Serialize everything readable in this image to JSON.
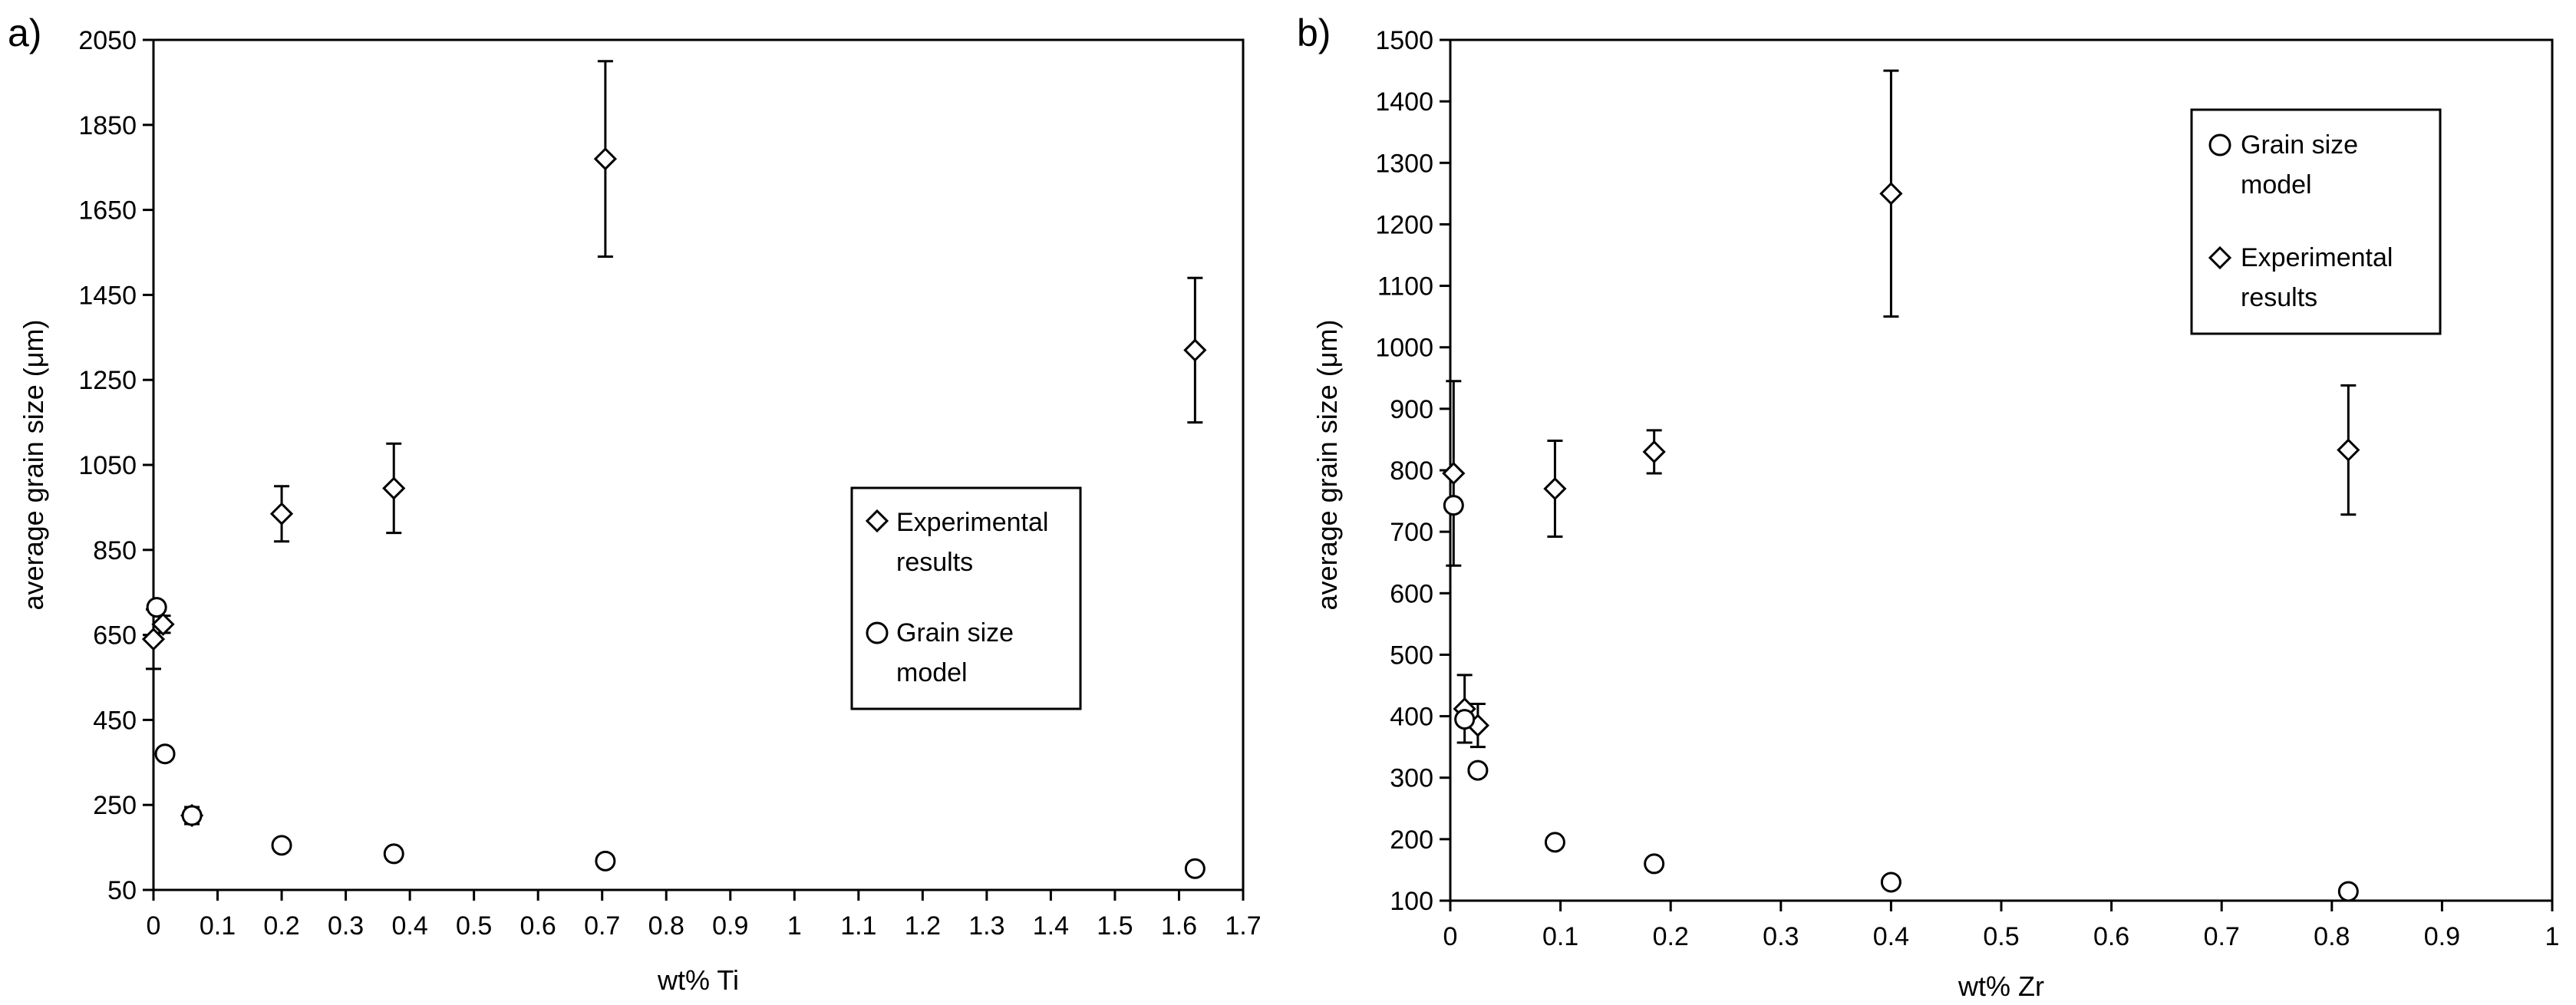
{
  "chart_data": [
    {
      "panel_label": "a)",
      "type": "scatter",
      "xlabel": "wt% Ti",
      "ylabel": "average grain size (μm)",
      "xlim": [
        0,
        1.7
      ],
      "ylim": [
        50,
        2050
      ],
      "x_ticks": [
        "0",
        "0.1",
        "0.2",
        "0.3",
        "0.4",
        "0.5",
        "0.6",
        "0.7",
        "0.8",
        "0.9",
        "1",
        "1.1",
        "1.2",
        "1.3",
        "1.4",
        "1.5",
        "1.6",
        "1.7"
      ],
      "y_ticks": [
        "50",
        "250",
        "450",
        "650",
        "850",
        "1050",
        "1250",
        "1450",
        "1650",
        "1850",
        "2050"
      ],
      "legend_position": "right",
      "series": [
        {
          "name": "Experimental results",
          "marker": "diamond",
          "points": [
            {
              "x": 0.0,
              "y": 640,
              "err": 70
            },
            {
              "x": 0.015,
              "y": 675,
              "err": 20
            },
            {
              "x": 0.06,
              "y": 225,
              "err": 20
            },
            {
              "x": 0.2,
              "y": 935,
              "err": 65
            },
            {
              "x": 0.375,
              "y": 995,
              "err": 105
            },
            {
              "x": 0.705,
              "y": 1770,
              "err": 230
            },
            {
              "x": 1.625,
              "y": 1320,
              "err": 170
            }
          ]
        },
        {
          "name": "Grain size model",
          "marker": "circle",
          "points": [
            {
              "x": 0.005,
              "y": 715
            },
            {
              "x": 0.018,
              "y": 370
            },
            {
              "x": 0.06,
              "y": 225
            },
            {
              "x": 0.2,
              "y": 155
            },
            {
              "x": 0.375,
              "y": 135
            },
            {
              "x": 0.705,
              "y": 118
            },
            {
              "x": 1.625,
              "y": 100
            }
          ]
        }
      ],
      "legend_entries": [
        {
          "label_lines": [
            "Experimental",
            "results"
          ],
          "marker": "diamond"
        },
        {
          "label_lines": [
            "Grain size",
            "model"
          ],
          "marker": "circle"
        }
      ]
    },
    {
      "panel_label": "b)",
      "type": "scatter",
      "xlabel": "wt% Zr",
      "ylabel": "average grain size (μm)",
      "xlim": [
        0,
        1
      ],
      "ylim": [
        100,
        1500
      ],
      "x_ticks": [
        "0",
        "0.1",
        "0.2",
        "0.3",
        "0.4",
        "0.5",
        "0.6",
        "0.7",
        "0.8",
        "0.9",
        "1"
      ],
      "y_ticks": [
        "100",
        "200",
        "300",
        "400",
        "500",
        "600",
        "700",
        "800",
        "900",
        "1000",
        "1100",
        "1200",
        "1300",
        "1400",
        "1500"
      ],
      "legend_position": "top-right",
      "series": [
        {
          "name": "Experimental results",
          "marker": "diamond",
          "points": [
            {
              "x": 0.003,
              "y": 795,
              "err": 150
            },
            {
              "x": 0.013,
              "y": 412,
              "err": 55
            },
            {
              "x": 0.025,
              "y": 385,
              "err": 35
            },
            {
              "x": 0.095,
              "y": 770,
              "err": 78
            },
            {
              "x": 0.185,
              "y": 830,
              "err": 35
            },
            {
              "x": 0.4,
              "y": 1250,
              "err": 200
            },
            {
              "x": 0.815,
              "y": 833,
              "err": 105
            }
          ]
        },
        {
          "name": "Grain size model",
          "marker": "circle",
          "points": [
            {
              "x": 0.003,
              "y": 743
            },
            {
              "x": 0.013,
              "y": 395
            },
            {
              "x": 0.025,
              "y": 312
            },
            {
              "x": 0.095,
              "y": 195
            },
            {
              "x": 0.185,
              "y": 160
            },
            {
              "x": 0.4,
              "y": 130
            },
            {
              "x": 0.815,
              "y": 115
            }
          ]
        }
      ],
      "legend_entries": [
        {
          "label_lines": [
            "Grain size",
            "model"
          ],
          "marker": "circle"
        },
        {
          "label_lines": [
            "Experimental",
            "results"
          ],
          "marker": "diamond"
        }
      ]
    }
  ]
}
